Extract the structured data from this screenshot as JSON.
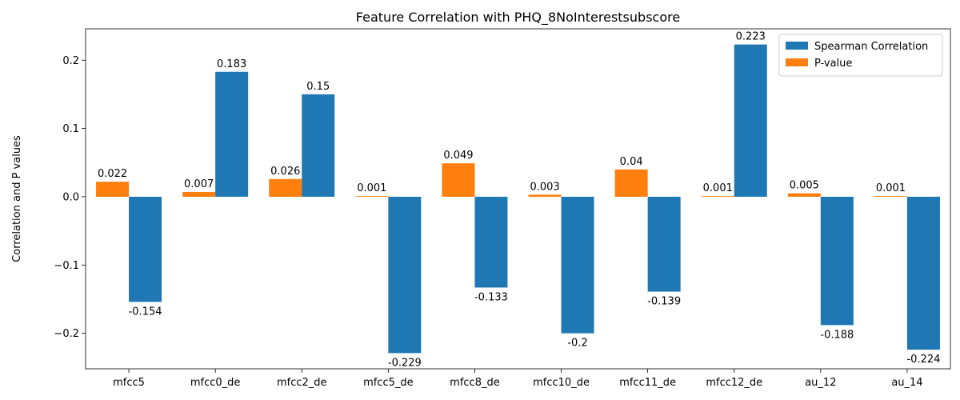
{
  "chart_data": {
    "type": "bar",
    "title": "Feature Correlation with PHQ_8NoInterestsubscore",
    "xlabel": "",
    "ylabel": "Correlation and P values",
    "categories": [
      "mfcc5",
      "mfcc0_de",
      "mfcc2_de",
      "mfcc5_de",
      "mfcc8_de",
      "mfcc10_de",
      "mfcc11_de",
      "mfcc12_de",
      "au_12",
      "au_14"
    ],
    "series": [
      {
        "name": "P-value",
        "color": "#ff7f0e",
        "values": [
          0.022,
          0.007,
          0.026,
          0.001,
          0.049,
          0.003,
          0.04,
          0.001,
          0.005,
          0.001
        ],
        "labels": [
          "0.022",
          "0.007",
          "0.026",
          "0.001",
          "0.049",
          "0.003",
          "0.04",
          "0.001",
          "0.005",
          "0.001"
        ]
      },
      {
        "name": "Spearman Correlation",
        "color": "#1f77b4",
        "values": [
          -0.154,
          0.183,
          0.15,
          -0.229,
          -0.133,
          -0.2,
          -0.139,
          0.223,
          -0.188,
          -0.224
        ],
        "labels": [
          "-0.154",
          "0.183",
          "0.15",
          "-0.229",
          "-0.133",
          "-0.2",
          "-0.139",
          "0.223",
          "-0.188",
          "-0.224"
        ]
      }
    ],
    "legend_order": [
      "Spearman Correlation",
      "P-value"
    ],
    "ylim": [
      -0.252,
      0.246
    ],
    "yticks": [
      -0.2,
      -0.1,
      0.0,
      0.1,
      0.2
    ],
    "ytick_labels": [
      "−0.2",
      "−0.1",
      "0.0",
      "0.1",
      "0.2"
    ],
    "legend_position": "top-right",
    "grid": false
  }
}
